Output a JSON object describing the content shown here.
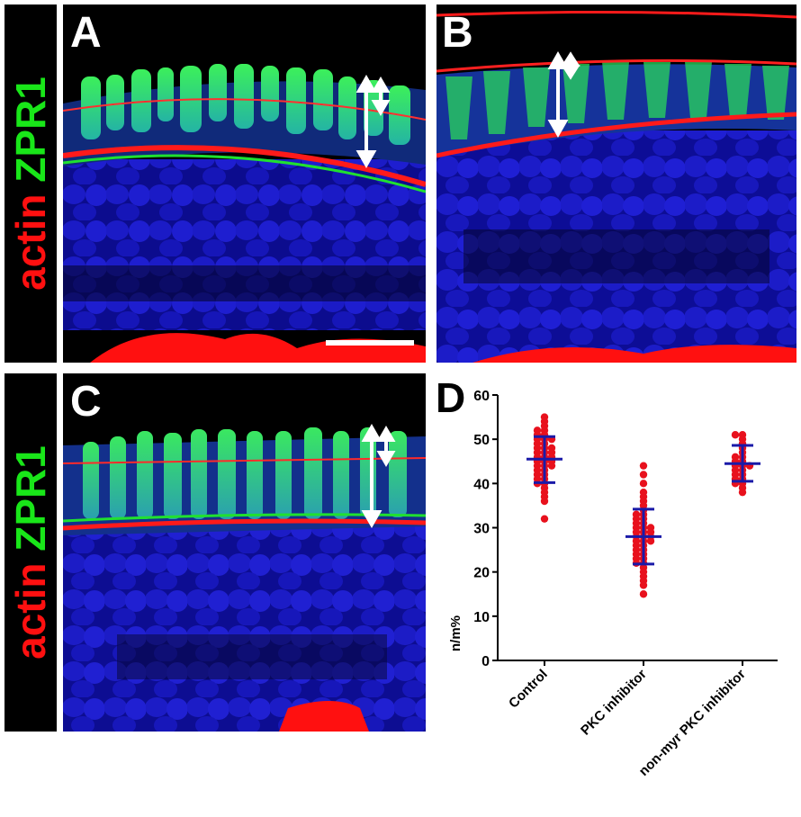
{
  "figure": {
    "stain_label": {
      "red_part": "actin",
      "green_part": "ZPR1"
    },
    "panels": [
      {
        "id": "A",
        "letter": "A",
        "has_scale_bar": true
      },
      {
        "id": "B",
        "letter": "B",
        "has_scale_bar": false
      },
      {
        "id": "C",
        "letter": "C",
        "has_scale_bar": false
      }
    ],
    "chart_letter": "D"
  },
  "colors": {
    "nuclei": "#1a1ad4",
    "zpr1": "#19e619",
    "actin": "#ff1010",
    "chart_points": "#e8111d",
    "chart_bars": "#1a1aa8"
  },
  "chart_data": {
    "type": "scatter",
    "title": "",
    "xlabel": "",
    "ylabel": "n/m%",
    "ylim": [
      0,
      60
    ],
    "yticks": [
      0,
      10,
      20,
      30,
      40,
      50,
      60
    ],
    "categories": [
      "Control",
      "PKC inhibitor",
      "non-myr PKC inhibitor"
    ],
    "series": [
      {
        "category": "Control",
        "mean": 45.5,
        "sd_low": 40.2,
        "sd_high": 50.6,
        "points": [
          55,
          54,
          53,
          52,
          52,
          51,
          51,
          50,
          50,
          50,
          49,
          49,
          48,
          48,
          48,
          47,
          47,
          47,
          46,
          46,
          46,
          45,
          45,
          45,
          44,
          44,
          44,
          43,
          43,
          42,
          42,
          41,
          41,
          40,
          40,
          39,
          38,
          37,
          36,
          32
        ]
      },
      {
        "category": "PKC inhibitor",
        "mean": 28,
        "sd_low": 21.8,
        "sd_high": 34.2,
        "points": [
          44,
          42,
          40,
          38,
          37,
          36,
          35,
          34,
          33,
          33,
          32,
          32,
          31,
          31,
          30,
          30,
          30,
          29,
          29,
          29,
          28,
          28,
          28,
          27,
          27,
          27,
          26,
          26,
          25,
          25,
          24,
          24,
          23,
          23,
          22,
          22,
          21,
          20,
          19,
          18,
          17,
          15
        ]
      },
      {
        "category": "non-myr PKC inhibitor",
        "mean": 44.5,
        "sd_low": 40.5,
        "sd_high": 48.6,
        "points": [
          51,
          51,
          50,
          49,
          48,
          47,
          46,
          46,
          45,
          45,
          44,
          44,
          44,
          43,
          43,
          42,
          42,
          41,
          41,
          40,
          40,
          39,
          38
        ]
      }
    ]
  }
}
